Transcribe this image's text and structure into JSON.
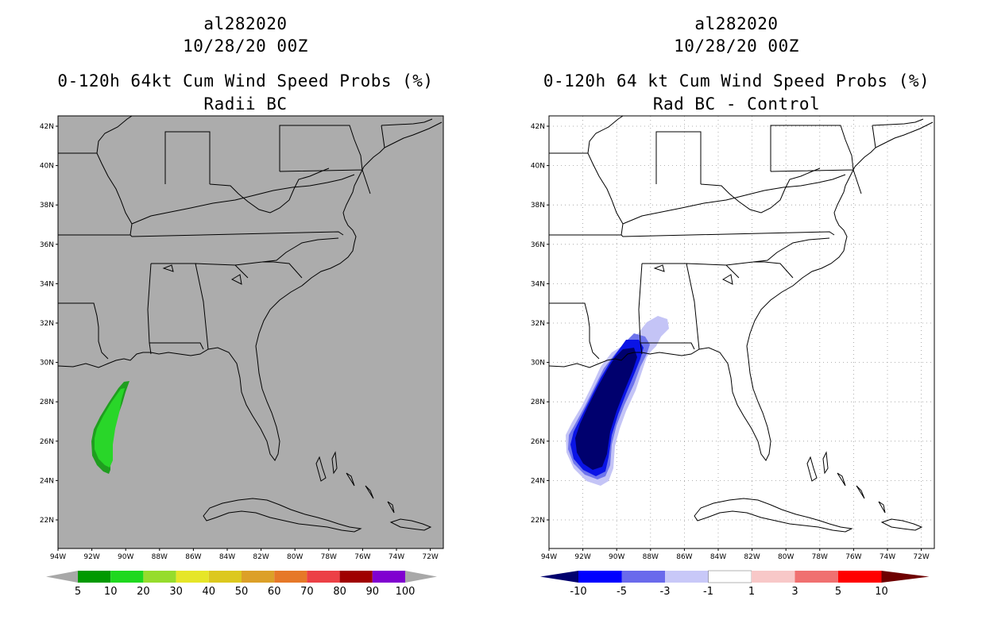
{
  "colors": {
    "map_bg_left": "#acacac",
    "map_bg_right": "#ffffff",
    "coast": "#000000",
    "green_5": "#1f9e1f",
    "green_10": "#29d629",
    "blue_10": "#00006e",
    "blue_5": "#0a14e6",
    "blue_3": "#6e74ec",
    "blue_1": "#c4c4f6"
  },
  "left": {
    "title_storm": "al282020",
    "title_time": "10/28/20 00Z",
    "title_product": "0-120h 64kt Cum Wind Speed Probs (%)",
    "title_sub": "Radii BC",
    "lat_labels": [
      "42N",
      "40N",
      "38N",
      "36N",
      "34N",
      "32N",
      "30N",
      "28N",
      "26N",
      "24N",
      "22N"
    ],
    "lon_labels": [
      "94W",
      "92W",
      "90W",
      "88W",
      "86W",
      "84W",
      "82W",
      "80W",
      "78W",
      "76W",
      "74W",
      "72W"
    ],
    "colorbar": {
      "colors": [
        "#009900",
        "#1ed81e",
        "#96dc2c",
        "#e6e628",
        "#dcc81e",
        "#dca028",
        "#e67828",
        "#ec4046",
        "#a00000",
        "#8000d0"
      ],
      "end_color": "#a8a8a8",
      "labels": [
        "5",
        "10",
        "20",
        "30",
        "40",
        "50",
        "60",
        "70",
        "80",
        "90",
        "100"
      ]
    }
  },
  "right": {
    "title_storm": "al282020",
    "title_time": "10/28/20 00Z",
    "title_product": "0-120h 64 kt Cum Wind Speed Probs (%)",
    "title_sub": "Rad BC - Control",
    "lat_labels": [
      "42N",
      "40N",
      "38N",
      "36N",
      "34N",
      "32N",
      "30N",
      "28N",
      "26N",
      "24N",
      "22N"
    ],
    "lon_labels": [
      "94W",
      "92W",
      "90W",
      "88W",
      "86W",
      "84W",
      "82W",
      "80W",
      "78W",
      "76W",
      "74W",
      "72W"
    ],
    "colorbar": {
      "colors": [
        "#0000a0",
        "#0000ff",
        "#6a6aec",
        "#c8c8f8",
        "#ffffff",
        "#f8c8c8",
        "#f07070",
        "#ff0000",
        "#7a0000"
      ],
      "end_color_low": "#00006e",
      "end_color_high": "#6e0000",
      "labels": [
        "-10",
        "-5",
        "-3",
        "-1",
        "1",
        "3",
        "5",
        "10"
      ]
    }
  }
}
